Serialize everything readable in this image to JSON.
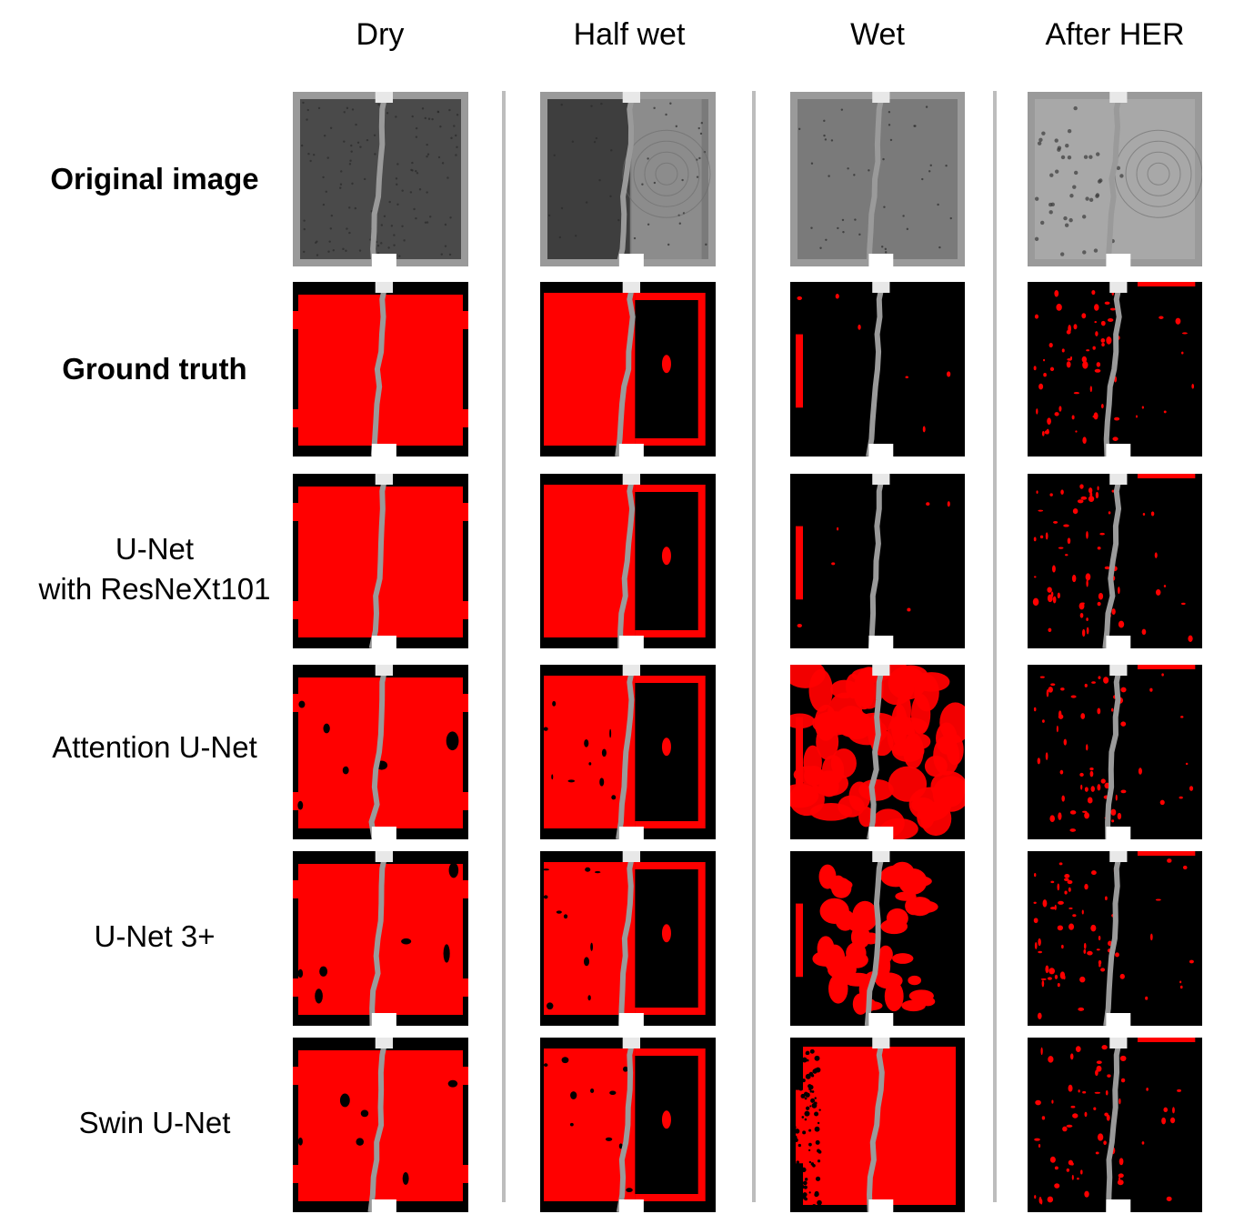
{
  "columns": [
    "Dry",
    "Half wet",
    "Wet",
    "After HER"
  ],
  "rows": [
    {
      "label": "Original image",
      "bold": true
    },
    {
      "label": "Ground truth",
      "bold": true
    },
    {
      "label": "U-Net\nwith ResNeXt101",
      "bold": false
    },
    {
      "label": "Attention U-Net",
      "bold": false
    },
    {
      "label": "U-Net 3+",
      "bold": false
    },
    {
      "label": "Swin U-Net",
      "bold": false
    }
  ],
  "colors": {
    "segmentation": "#ff0000",
    "background": "#000000",
    "membrane": "#9a9a9a",
    "original_dark": "#3c3c3c",
    "original_light": "#8a8a8a",
    "divider": "#bdbdbd"
  }
}
